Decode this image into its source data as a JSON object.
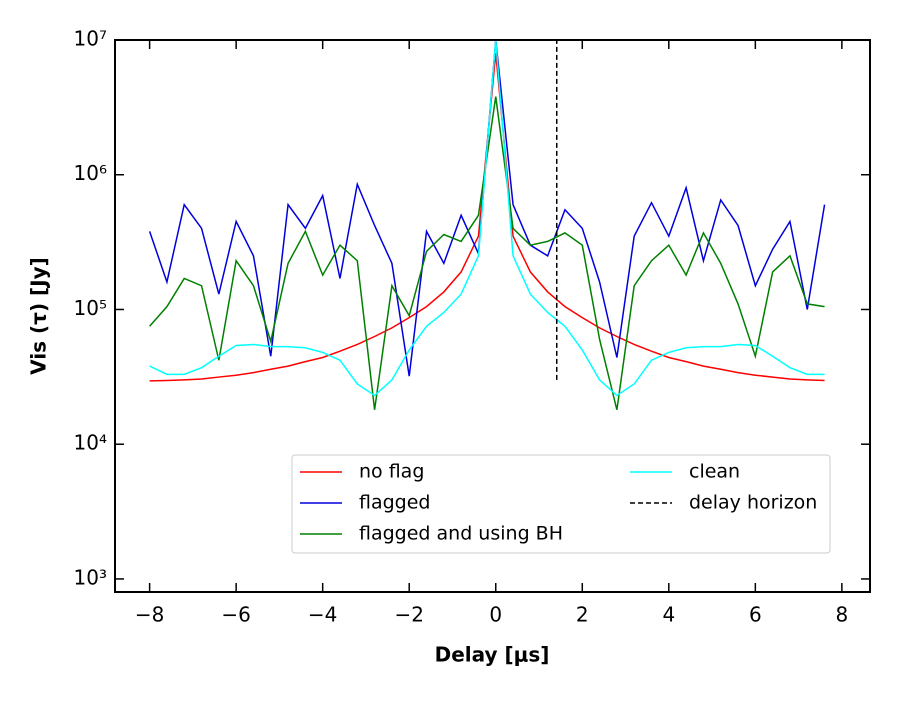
{
  "chart_data": {
    "type": "line",
    "y_label": "Vis (τ) [Jy]",
    "x_label": "Delay [μs]",
    "log_y": true,
    "legend": "lower center",
    "legend_columns": 2,
    "xlim": [
      -8.8,
      8.65
    ],
    "ylim": [
      800,
      10000000
    ],
    "xticks": [
      {
        "value": -8,
        "label": "−8"
      },
      {
        "value": -6,
        "label": "−6"
      },
      {
        "value": -4,
        "label": "−4"
      },
      {
        "value": -2,
        "label": "−2"
      },
      0,
      2,
      4,
      6,
      8
    ],
    "yticks": [
      {
        "value": 1000,
        "label": "10³"
      },
      {
        "value": 10000,
        "label": "10⁴"
      },
      {
        "value": 100000,
        "label": "10⁵"
      },
      {
        "value": 1000000,
        "label": "10⁶"
      },
      {
        "value": 10000000,
        "label": "10⁷"
      }
    ],
    "x": [
      -8,
      -7.6,
      -7.2,
      -6.8,
      -6.4,
      -6,
      -5.6,
      -5.2,
      -4.8,
      -4.4,
      -4,
      -3.6,
      -3.2,
      -2.8,
      -2.4,
      -2,
      -1.6,
      -1.2,
      -0.8,
      -0.4,
      0,
      0.4,
      0.8,
      1.2,
      1.6,
      2,
      2.4,
      2.8,
      3.2,
      3.6,
      4,
      4.4,
      4.8,
      5.2,
      5.6,
      6,
      6.4,
      6.8,
      7.2,
      7.6
    ],
    "series": [
      {
        "name": "no flag",
        "color": "#ff0000",
        "values": [
          29500,
          29700,
          30000,
          30500,
          31500,
          32500,
          34000,
          36000,
          38000,
          41000,
          44000,
          49000,
          55000,
          63000,
          73000,
          87000,
          105000,
          135000,
          190000,
          350000,
          8000000,
          350000,
          190000,
          135000,
          105000,
          87000,
          73000,
          63000,
          55000,
          49000,
          44000,
          41000,
          38000,
          36000,
          34000,
          32500,
          31500,
          30500,
          30000,
          29700
        ]
      },
      {
        "name": "flagged",
        "color": "#0000dd",
        "values": [
          380000,
          160000,
          600000,
          400000,
          130000,
          450000,
          250000,
          45000,
          600000,
          400000,
          700000,
          170000,
          850000,
          420000,
          220000,
          32000,
          380000,
          220000,
          500000,
          260000,
          10000000,
          600000,
          300000,
          250000,
          550000,
          400000,
          160000,
          44000,
          350000,
          620000,
          350000,
          800000,
          230000,
          650000,
          420000,
          150000,
          280000,
          450000,
          100000,
          600000
        ]
      },
      {
        "name": "flagged and using BH",
        "color": "#008000",
        "values": [
          75000,
          105000,
          170000,
          150000,
          42000,
          230000,
          150000,
          58000,
          220000,
          380000,
          180000,
          300000,
          230000,
          18000,
          150000,
          90000,
          270000,
          360000,
          320000,
          500000,
          3800000,
          400000,
          300000,
          320000,
          370000,
          300000,
          60000,
          18000,
          150000,
          230000,
          300000,
          180000,
          370000,
          220000,
          110000,
          45000,
          190000,
          250000,
          110000,
          105000
        ]
      },
      {
        "name": "clean",
        "color": "#00ffff",
        "values": [
          38000,
          33000,
          33000,
          37000,
          45000,
          54000,
          55000,
          53000,
          53000,
          52000,
          48000,
          42000,
          28000,
          23000,
          30000,
          50000,
          75000,
          95000,
          130000,
          250000,
          10000000,
          250000,
          130000,
          95000,
          75000,
          50000,
          30000,
          23000,
          28000,
          42000,
          48000,
          52000,
          53000,
          53000,
          55000,
          54000,
          45000,
          37000,
          33000,
          33000
        ]
      },
      {
        "name": "delay horizon",
        "color": "#000000",
        "dashed": true,
        "x": [
          1.41,
          1.41
        ],
        "values": [
          30000,
          10000000
        ]
      }
    ]
  }
}
